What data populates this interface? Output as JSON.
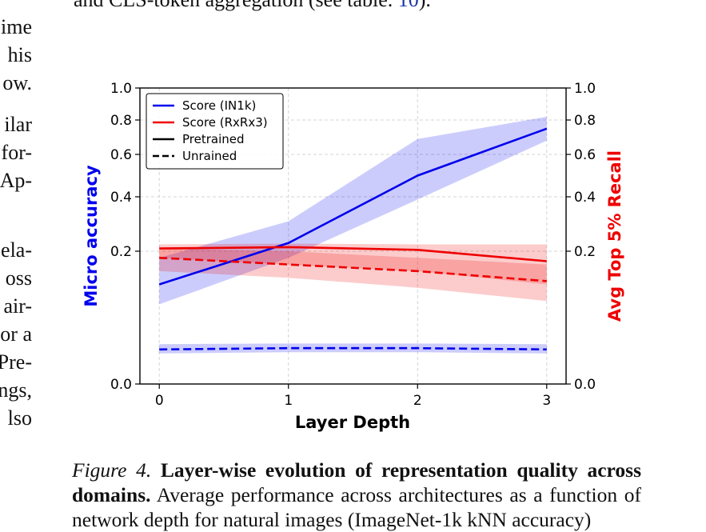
{
  "page": {
    "top_line": {
      "before": "and CLS-token aggregation (see table. ",
      "ref": "10",
      "after": ")."
    },
    "left_fragments": [
      "ime",
      "his",
      "ow.",
      "ilar",
      "for-",
      "Ap-",
      "ela-",
      "oss",
      "air-",
      "or a",
      "Pre-",
      "ngs,",
      "lso",
      "."
    ],
    "caption": {
      "label": "Figure 4.",
      "title": "Layer-wise evolution of representation quality across domains.",
      "text": "Average performance across architectures as a function",
      "cut_line": "of network depth for natural images (ImageNet-1k kNN accuracy)"
    }
  },
  "chart_data": {
    "type": "line",
    "xlabel": "Layer Depth",
    "ylabel_left": "Micro accuracy",
    "ylabel_right": "Avg Top 5% Recall",
    "x": [
      0,
      1,
      2,
      3
    ],
    "x_ticks": [
      "0",
      "1",
      "2",
      "3"
    ],
    "xlim": [
      -0.15,
      3.15
    ],
    "y_ticks": [
      "0.0",
      "0.2",
      "0.4",
      "0.6",
      "0.8",
      "1.0"
    ],
    "grid": true,
    "legend": {
      "position": "top-left",
      "entries": [
        {
          "label": "Score (IN1k)",
          "color": "#0000ee",
          "style": "solid"
        },
        {
          "label": "Score (RxRx3)",
          "color": "#ee0000",
          "style": "solid"
        },
        {
          "label": "Pretrained",
          "color": "#000000",
          "style": "solid"
        },
        {
          "label": "Unrained",
          "color": "#000000",
          "style": "dashed"
        }
      ]
    },
    "series": [
      {
        "name": "Score (IN1k)",
        "group": "Pretrained",
        "axis": "left",
        "color": "#0000ee",
        "dash": false,
        "values": [
          0.15,
          0.23,
          0.5,
          0.75
        ],
        "lower": [
          0.12,
          0.19,
          0.39,
          0.68
        ],
        "upper": [
          0.19,
          0.31,
          0.69,
          0.82
        ]
      },
      {
        "name": "Score (IN1k)",
        "group": "Unrained",
        "axis": "left",
        "color": "#0000ee",
        "dash": true,
        "values": [
          0.052,
          0.054,
          0.054,
          0.052
        ],
        "lower": [
          0.046,
          0.048,
          0.048,
          0.046
        ],
        "upper": [
          0.06,
          0.061,
          0.061,
          0.06
        ]
      },
      {
        "name": "Score (RxRx3)",
        "group": "Pretrained",
        "axis": "right",
        "color": "#ee0000",
        "dash": false,
        "values": [
          0.21,
          0.215,
          0.205,
          0.185
        ],
        "lower": [
          0.19,
          0.18,
          0.17,
          0.15
        ],
        "upper": [
          0.225,
          0.228,
          0.225,
          0.225
        ]
      },
      {
        "name": "Score (RxRx3)",
        "group": "Unrained",
        "axis": "right",
        "color": "#ee0000",
        "dash": true,
        "values": [
          0.19,
          0.18,
          0.17,
          0.155
        ],
        "lower": [
          0.17,
          0.16,
          0.145,
          0.125
        ],
        "upper": [
          0.21,
          0.2,
          0.19,
          0.18
        ]
      }
    ]
  }
}
